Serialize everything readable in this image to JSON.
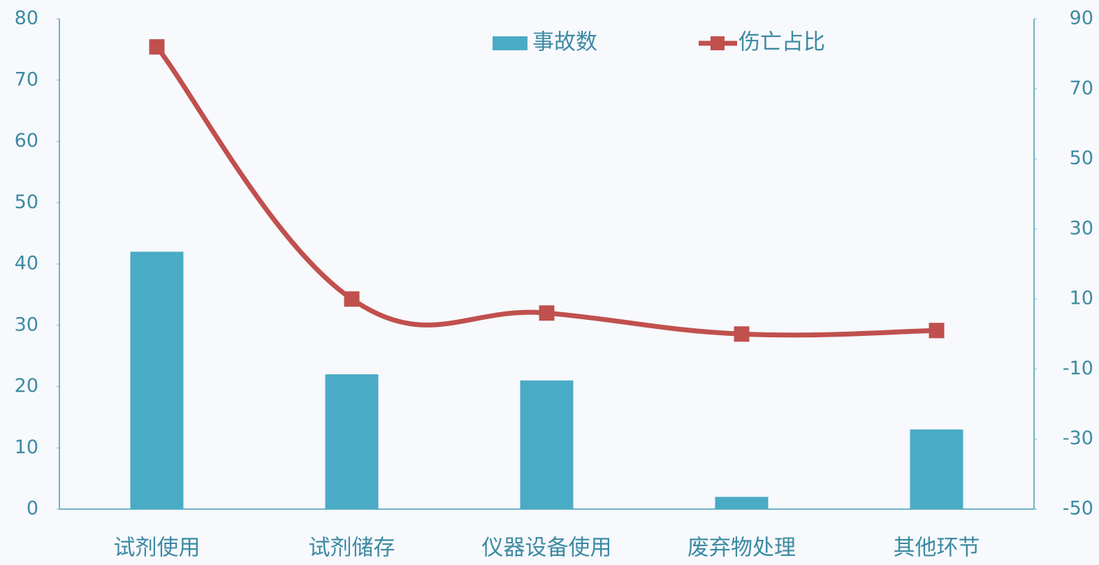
{
  "chart_data": {
    "type": "bar-line",
    "categories": [
      "试剂使用",
      "试剂储存",
      "仪器设备使用",
      "废弃物处理",
      "其他环节"
    ],
    "series": [
      {
        "name": "事故数",
        "type": "bar",
        "color": "#4aabc6",
        "values": [
          42,
          22,
          21,
          2,
          13
        ]
      },
      {
        "name": "伤亡占比",
        "type": "line",
        "axis": "y2",
        "color": "#c0504d",
        "values": [
          82,
          10,
          6,
          0,
          1
        ]
      }
    ],
    "ylim": [
      0,
      80
    ],
    "yticks": [
      0,
      10,
      20,
      30,
      40,
      50,
      60,
      70,
      80
    ],
    "y2lim": [
      -50,
      90
    ],
    "y2ticks": [
      -50,
      -30,
      -10,
      10,
      30,
      50,
      70,
      90
    ],
    "legend": "top"
  }
}
